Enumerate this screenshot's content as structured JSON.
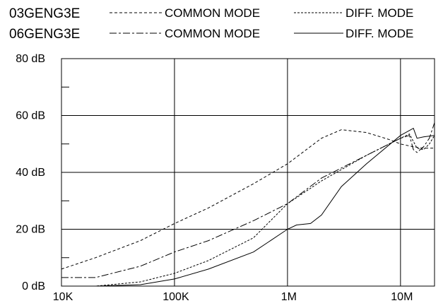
{
  "chart_data": {
    "type": "line",
    "title": "",
    "xlabel": "",
    "ylabel": "",
    "x_scale": "log",
    "xlim": [
      10000,
      20000000
    ],
    "ylim": [
      0,
      80
    ],
    "grid": true,
    "x_ticks": [
      {
        "value": 10000,
        "label": "10K"
      },
      {
        "value": 100000,
        "label": "100K"
      },
      {
        "value": 1000000,
        "label": "1M"
      },
      {
        "value": 10000000,
        "label": "10M"
      }
    ],
    "y_ticks": [
      {
        "value": 0,
        "label": "0 dB"
      },
      {
        "value": 20,
        "label": "20 dB"
      },
      {
        "value": 40,
        "label": "40 dB"
      },
      {
        "value": 60,
        "label": "60 dB"
      },
      {
        "value": 80,
        "label": "80 dB"
      }
    ],
    "legend": [
      {
        "part": "03GENG3E",
        "common": "COMMON MODE",
        "diff": "DIFF. MODE"
      },
      {
        "part": "06GENG3E",
        "common": "COMMON MODE",
        "diff": "DIFF. MODE"
      }
    ],
    "series": [
      {
        "part": "03GENG3E",
        "mode": "COMMON MODE",
        "dash": "4,3",
        "legend_row": 0,
        "legend_slot": "common",
        "points": [
          [
            10000,
            6
          ],
          [
            20000,
            10
          ],
          [
            50000,
            16
          ],
          [
            100000,
            22
          ],
          [
            200000,
            27.5
          ],
          [
            500000,
            36
          ],
          [
            1000000,
            43
          ],
          [
            2000000,
            52
          ],
          [
            3000000,
            55
          ],
          [
            5000000,
            54
          ],
          [
            8000000,
            51.5
          ],
          [
            10000000,
            50
          ],
          [
            13000000,
            49
          ],
          [
            16000000,
            48.5
          ],
          [
            20000000,
            48.5
          ]
        ]
      },
      {
        "part": "03GENG3E",
        "mode": "DIFF. MODE",
        "dash": "3,2",
        "legend_row": 0,
        "legend_slot": "diff",
        "points": [
          [
            10000,
            0
          ],
          [
            20000,
            0
          ],
          [
            50000,
            1.5
          ],
          [
            100000,
            4.5
          ],
          [
            200000,
            9
          ],
          [
            500000,
            17
          ],
          [
            1000000,
            29
          ],
          [
            2000000,
            37
          ],
          [
            5000000,
            46
          ],
          [
            10000000,
            52
          ],
          [
            12000000,
            53.5
          ],
          [
            14000000,
            48.5
          ],
          [
            16000000,
            48
          ],
          [
            18000000,
            50
          ],
          [
            20000000,
            53
          ]
        ]
      },
      {
        "part": "06GENG3E",
        "mode": "COMMON MODE",
        "dash": "10,3,3,3",
        "legend_row": 1,
        "legend_slot": "common",
        "points": [
          [
            10000,
            3
          ],
          [
            20000,
            3
          ],
          [
            50000,
            7
          ],
          [
            100000,
            12
          ],
          [
            200000,
            16
          ],
          [
            500000,
            23
          ],
          [
            1000000,
            29
          ],
          [
            2000000,
            38
          ],
          [
            5000000,
            46
          ],
          [
            10000000,
            52
          ],
          [
            12000000,
            53
          ],
          [
            13000000,
            48
          ],
          [
            14000000,
            47
          ],
          [
            16000000,
            49
          ],
          [
            18000000,
            52
          ],
          [
            20000000,
            57.5
          ]
        ]
      },
      {
        "part": "06GENG3E",
        "mode": "DIFF. MODE",
        "dash": "",
        "legend_row": 1,
        "legend_slot": "diff",
        "points": [
          [
            10000,
            0
          ],
          [
            20000,
            0
          ],
          [
            50000,
            0.5
          ],
          [
            100000,
            2.5
          ],
          [
            200000,
            6
          ],
          [
            500000,
            12
          ],
          [
            1000000,
            20
          ],
          [
            1200000,
            21.5
          ],
          [
            1600000,
            22
          ],
          [
            2000000,
            25
          ],
          [
            3000000,
            35
          ],
          [
            5000000,
            43
          ],
          [
            10000000,
            53
          ],
          [
            13000000,
            55.5
          ],
          [
            14000000,
            52
          ],
          [
            16000000,
            52.5
          ],
          [
            20000000,
            53
          ]
        ]
      }
    ]
  }
}
